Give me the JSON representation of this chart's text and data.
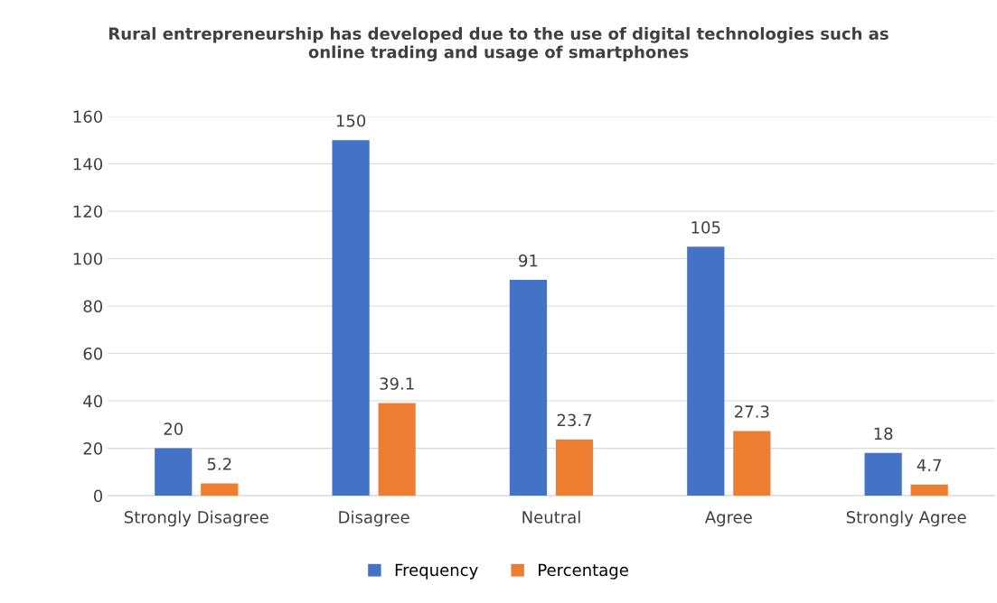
{
  "chart_data": {
    "type": "bar",
    "title": "Rural entrepreneurship has developed due to the use of digital technologies such as\nonline trading and usage of smartphones",
    "categories": [
      "Strongly Disagree",
      "Disagree",
      "Neutral",
      "Agree",
      "Strongly Agree"
    ],
    "series": [
      {
        "name": "Frequency",
        "color": "#4472c4",
        "values": [
          20,
          150,
          91,
          105,
          18
        ]
      },
      {
        "name": "Percentage",
        "color": "#ed7d31",
        "values": [
          5.2,
          39.1,
          23.7,
          27.3,
          4.7
        ]
      }
    ],
    "ylim": [
      0,
      160
    ],
    "yticks": [
      0,
      20,
      40,
      60,
      80,
      100,
      120,
      140,
      160
    ],
    "grid": "y",
    "legend": "bottom",
    "data_labels": true
  }
}
